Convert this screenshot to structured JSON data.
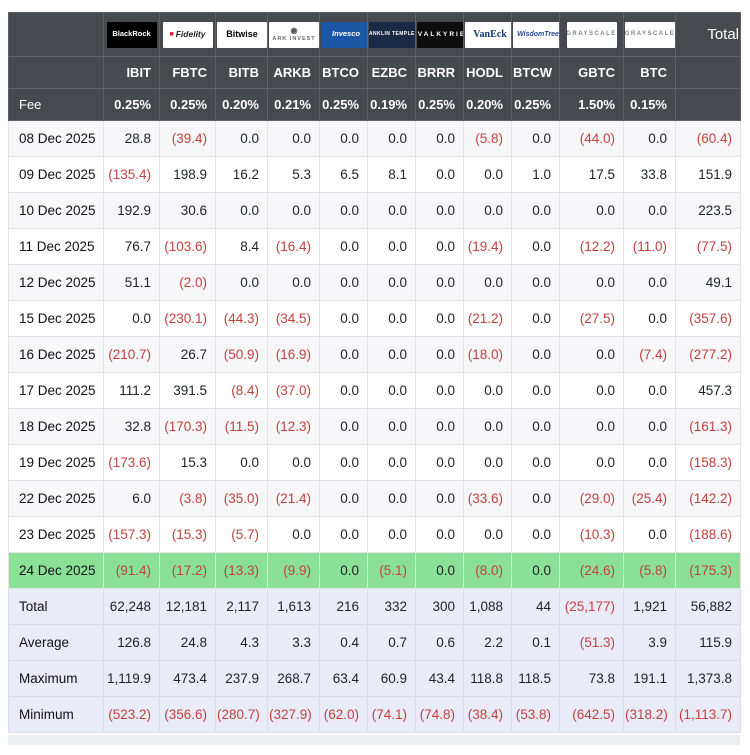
{
  "colors": {
    "header_bg": "#46494e",
    "header_border": "#5e6368",
    "negative": "#c2413d",
    "text": "#1e2126",
    "highlight": "#8ae097",
    "summary_bg": "#e9ecf7",
    "stripe": "#f7f7f9",
    "grid": "#e3e3e3"
  },
  "chart_data": {
    "type": "table",
    "total_label": "Total",
    "fee_label": "Fee",
    "columns": [
      {
        "provider": "BlackRock",
        "logo_key": "blackrock",
        "ticker": "IBIT",
        "fee": "0.25%"
      },
      {
        "provider": "Fidelity",
        "logo_key": "fidelity",
        "ticker": "FBTC",
        "fee": "0.25%"
      },
      {
        "provider": "Bitwise",
        "logo_key": "bitwise",
        "ticker": "BITB",
        "fee": "0.20%"
      },
      {
        "provider": "ARK INVEST",
        "logo_key": "ark",
        "ticker": "ARKB",
        "fee": "0.21%"
      },
      {
        "provider": "Invesco",
        "logo_key": "invesco",
        "ticker": "BTCO",
        "fee": "0.25%"
      },
      {
        "provider": "FRANKLIN TEMPLETON",
        "logo_key": "franklin",
        "ticker": "EZBC",
        "fee": "0.19%"
      },
      {
        "provider": "VALKYRIE",
        "logo_key": "valkyrie",
        "ticker": "BRRR",
        "fee": "0.25%"
      },
      {
        "provider": "VanEck",
        "logo_key": "vaneck",
        "ticker": "HODL",
        "fee": "0.20%"
      },
      {
        "provider": "WisdomTree",
        "logo_key": "wisdomtree",
        "ticker": "BTCW",
        "fee": "0.25%"
      },
      {
        "provider": "GRAYSCALE",
        "logo_key": "grayscale",
        "ticker": "GBTC",
        "fee": "1.50%"
      },
      {
        "provider": "GRAYSCALE",
        "logo_key": "grayscale",
        "ticker": "BTC",
        "fee": "0.15%"
      }
    ],
    "rows": [
      {
        "date": "08 Dec 2025",
        "values": [
          "28.8",
          "(39.4)",
          "0.0",
          "0.0",
          "0.0",
          "0.0",
          "0.0",
          "(5.8)",
          "0.0",
          "(44.0)",
          "0.0"
        ],
        "total": "(60.4)",
        "highlight": false
      },
      {
        "date": "09 Dec 2025",
        "values": [
          "(135.4)",
          "198.9",
          "16.2",
          "5.3",
          "6.5",
          "8.1",
          "0.0",
          "0.0",
          "1.0",
          "17.5",
          "33.8"
        ],
        "total": "151.9",
        "highlight": false
      },
      {
        "date": "10 Dec 2025",
        "values": [
          "192.9",
          "30.6",
          "0.0",
          "0.0",
          "0.0",
          "0.0",
          "0.0",
          "0.0",
          "0.0",
          "0.0",
          "0.0"
        ],
        "total": "223.5",
        "highlight": false
      },
      {
        "date": "11 Dec 2025",
        "values": [
          "76.7",
          "(103.6)",
          "8.4",
          "(16.4)",
          "0.0",
          "0.0",
          "0.0",
          "(19.4)",
          "0.0",
          "(12.2)",
          "(11.0)"
        ],
        "total": "(77.5)",
        "highlight": false
      },
      {
        "date": "12 Dec 2025",
        "values": [
          "51.1",
          "(2.0)",
          "0.0",
          "0.0",
          "0.0",
          "0.0",
          "0.0",
          "0.0",
          "0.0",
          "0.0",
          "0.0"
        ],
        "total": "49.1",
        "highlight": false
      },
      {
        "date": "15 Dec 2025",
        "values": [
          "0.0",
          "(230.1)",
          "(44.3)",
          "(34.5)",
          "0.0",
          "0.0",
          "0.0",
          "(21.2)",
          "0.0",
          "(27.5)",
          "0.0"
        ],
        "total": "(357.6)",
        "highlight": false
      },
      {
        "date": "16 Dec 2025",
        "values": [
          "(210.7)",
          "26.7",
          "(50.9)",
          "(16.9)",
          "0.0",
          "0.0",
          "0.0",
          "(18.0)",
          "0.0",
          "0.0",
          "(7.4)"
        ],
        "total": "(277.2)",
        "highlight": false
      },
      {
        "date": "17 Dec 2025",
        "values": [
          "111.2",
          "391.5",
          "(8.4)",
          "(37.0)",
          "0.0",
          "0.0",
          "0.0",
          "0.0",
          "0.0",
          "0.0",
          "0.0"
        ],
        "total": "457.3",
        "highlight": false
      },
      {
        "date": "18 Dec 2025",
        "values": [
          "32.8",
          "(170.3)",
          "(11.5)",
          "(12.3)",
          "0.0",
          "0.0",
          "0.0",
          "0.0",
          "0.0",
          "0.0",
          "0.0"
        ],
        "total": "(161.3)",
        "highlight": false
      },
      {
        "date": "19 Dec 2025",
        "values": [
          "(173.6)",
          "15.3",
          "0.0",
          "0.0",
          "0.0",
          "0.0",
          "0.0",
          "0.0",
          "0.0",
          "0.0",
          "0.0"
        ],
        "total": "(158.3)",
        "highlight": false
      },
      {
        "date": "22 Dec 2025",
        "values": [
          "6.0",
          "(3.8)",
          "(35.0)",
          "(21.4)",
          "0.0",
          "0.0",
          "0.0",
          "(33.6)",
          "0.0",
          "(29.0)",
          "(25.4)"
        ],
        "total": "(142.2)",
        "highlight": false
      },
      {
        "date": "23 Dec 2025",
        "values": [
          "(157.3)",
          "(15.3)",
          "(5.7)",
          "0.0",
          "0.0",
          "0.0",
          "0.0",
          "0.0",
          "0.0",
          "(10.3)",
          "0.0"
        ],
        "total": "(188.6)",
        "highlight": false
      },
      {
        "date": "24 Dec 2025",
        "values": [
          "(91.4)",
          "(17.2)",
          "(13.3)",
          "(9.9)",
          "0.0",
          "(5.1)",
          "0.0",
          "(8.0)",
          "0.0",
          "(24.6)",
          "(5.8)"
        ],
        "total": "(175.3)",
        "highlight": true
      }
    ],
    "summary": [
      {
        "label": "Total",
        "values": [
          "62,248",
          "12,181",
          "2,117",
          "1,613",
          "216",
          "332",
          "300",
          "1,088",
          "44",
          "(25,177)",
          "1,921"
        ],
        "total": "56,882"
      },
      {
        "label": "Average",
        "values": [
          "126.8",
          "24.8",
          "4.3",
          "3.3",
          "0.4",
          "0.7",
          "0.6",
          "2.2",
          "0.1",
          "(51.3)",
          "3.9"
        ],
        "total": "115.9"
      },
      {
        "label": "Maximum",
        "values": [
          "1,119.9",
          "473.4",
          "237.9",
          "268.7",
          "63.4",
          "60.9",
          "43.4",
          "118.8",
          "118.5",
          "73.8",
          "191.1"
        ],
        "total": "1,373.8"
      },
      {
        "label": "Minimum",
        "values": [
          "(523.2)",
          "(356.6)",
          "(280.7)",
          "(327.9)",
          "(62.0)",
          "(74.1)",
          "(74.8)",
          "(38.4)",
          "(53.8)",
          "(642.5)",
          "(318.2)"
        ],
        "total": "(1,113.7)"
      }
    ]
  }
}
